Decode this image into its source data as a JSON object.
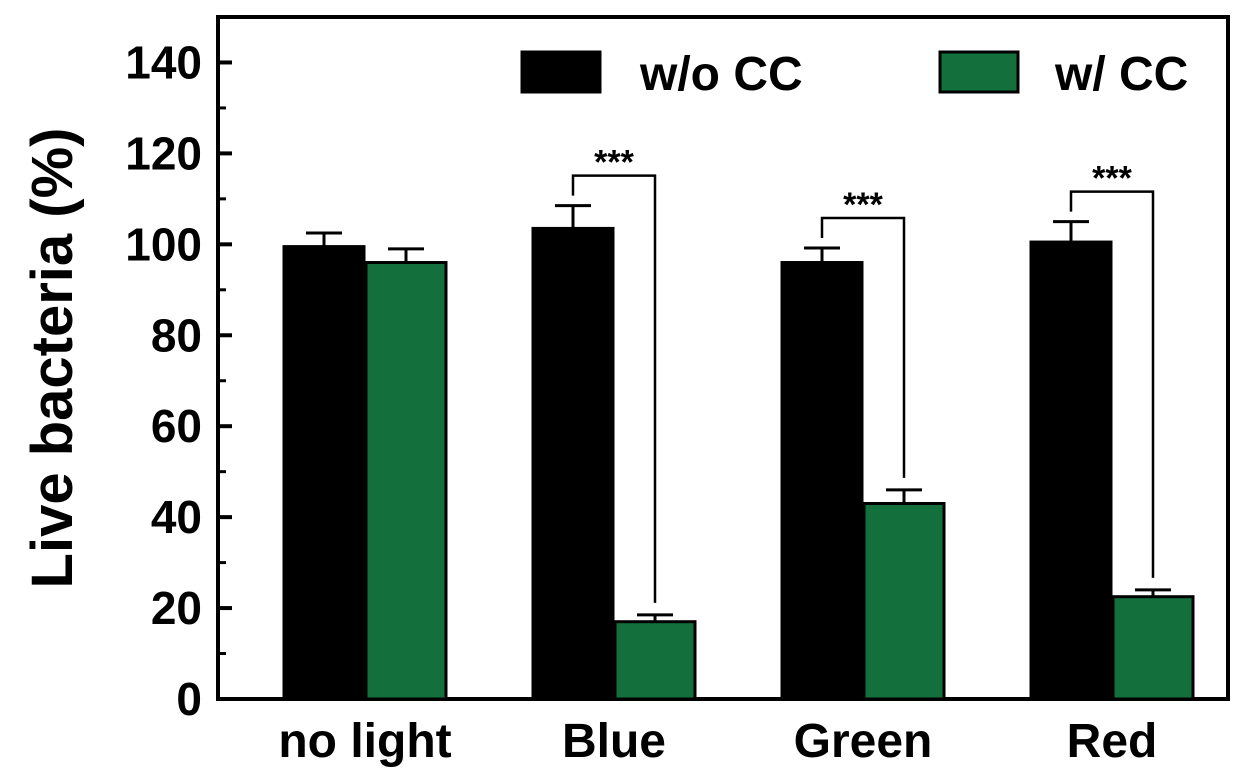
{
  "chart_data": {
    "type": "bar",
    "ylabel": "Live bacteria (%)",
    "xlabel": "",
    "ylim": [
      0,
      150
    ],
    "yticks": [
      0,
      20,
      40,
      60,
      80,
      100,
      120,
      140
    ],
    "ytick_labels": [
      "0",
      "20",
      "40",
      "60",
      "80",
      "100",
      "120",
      "140"
    ],
    "categories": [
      "no light",
      "Blue",
      "Green",
      "Red"
    ],
    "series": [
      {
        "name": "w/o CC",
        "color": "#000000",
        "values": [
          99.5,
          103.5,
          96,
          100.5
        ],
        "errors": [
          3.0,
          5.0,
          3.2,
          4.5
        ]
      },
      {
        "name": "w/ CC",
        "color": "#13703d",
        "values": [
          96,
          17,
          43,
          22.5
        ],
        "errors": [
          3.0,
          1.5,
          3.0,
          1.5
        ]
      }
    ],
    "significance": [
      {
        "category": "Blue",
        "label": "***"
      },
      {
        "category": "Green",
        "label": "***"
      },
      {
        "category": "Red",
        "label": "***"
      }
    ],
    "legend_position": "top-right",
    "grid": false
  }
}
